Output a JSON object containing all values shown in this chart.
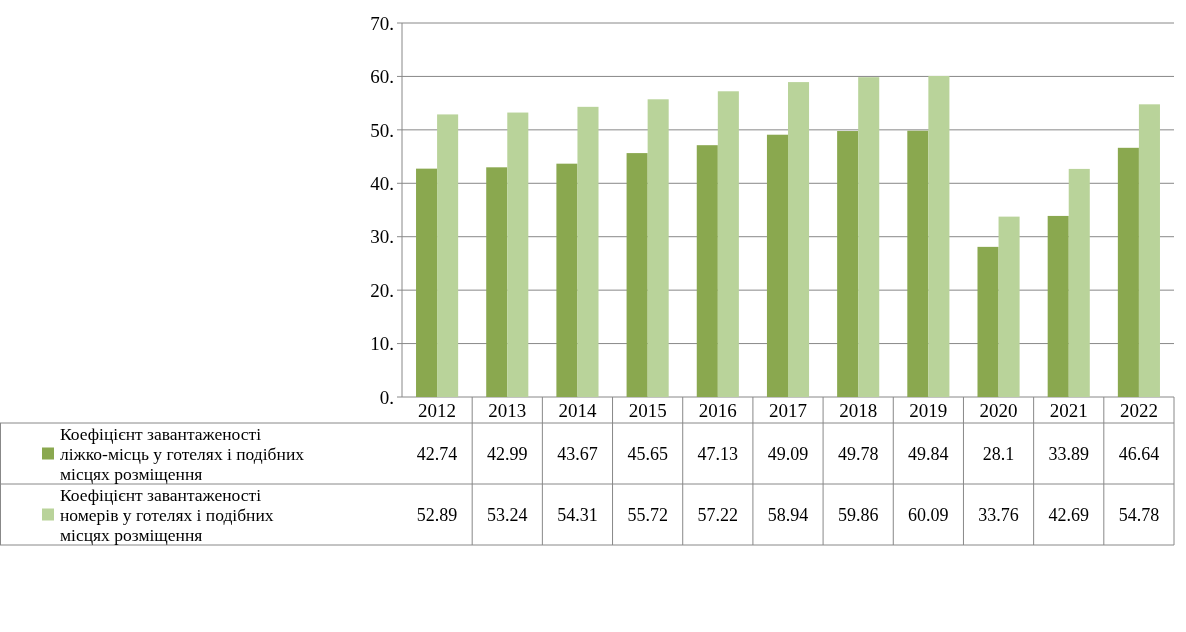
{
  "chart_data": {
    "type": "bar",
    "categories": [
      "2012",
      "2013",
      "2014",
      "2015",
      "2016",
      "2017",
      "2018",
      "2019",
      "2020",
      "2021",
      "2022"
    ],
    "series": [
      {
        "name": "Коефіцієнт завантаженості ліжко-місць у готелях і подібних місцях розміщення",
        "color": "#8aa84f",
        "values": [
          42.74,
          42.99,
          43.67,
          45.65,
          47.13,
          49.09,
          49.78,
          49.84,
          28.1,
          33.89,
          46.64
        ]
      },
      {
        "name": "Коефіцієнт завантаженості номерів у готелях і подібних місцях розміщення",
        "color": "#b9d39a",
        "values": [
          52.89,
          53.24,
          54.31,
          55.72,
          57.22,
          58.94,
          59.86,
          60.09,
          33.76,
          42.69,
          54.78
        ]
      }
    ],
    "ylim": [
      0,
      70
    ],
    "yticks": [
      {
        "value": 0,
        "label": "0."
      },
      {
        "value": 10,
        "label": "10."
      },
      {
        "value": 20,
        "label": "20."
      },
      {
        "value": 30,
        "label": "30."
      },
      {
        "value": 40,
        "label": "40."
      },
      {
        "value": 50,
        "label": "50."
      },
      {
        "value": 60,
        "label": "60."
      },
      {
        "value": 70,
        "label": "70."
      }
    ],
    "grid": "y",
    "data_labels": true,
    "legend": "left"
  }
}
